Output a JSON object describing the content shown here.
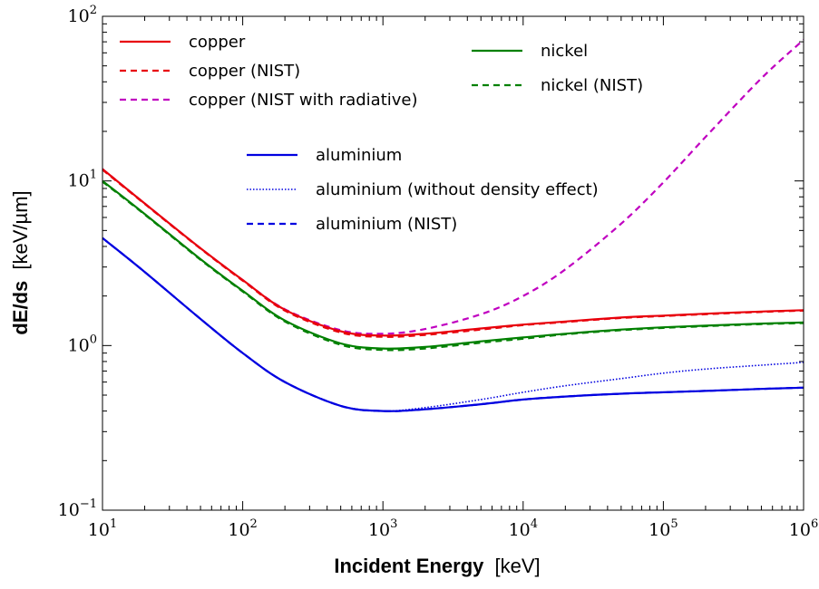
{
  "chart_data": {
    "type": "line",
    "xlabel": {
      "main": "Incident Energy",
      "unit": "[keV]"
    },
    "ylabel": {
      "main": "dE/ds",
      "unit": "[keV/µm]"
    },
    "xscale": "log",
    "yscale": "log",
    "xlim": [
      10,
      1000000
    ],
    "ylim": [
      0.1,
      100
    ],
    "grid": false,
    "x_ticks": [
      {
        "base": "10",
        "exp": "1"
      },
      {
        "base": "10",
        "exp": "2"
      },
      {
        "base": "10",
        "exp": "3"
      },
      {
        "base": "10",
        "exp": "4"
      },
      {
        "base": "10",
        "exp": "5"
      },
      {
        "base": "10",
        "exp": "6"
      }
    ],
    "y_ticks": [
      {
        "base": "10",
        "exp": "−1"
      },
      {
        "base": "10",
        "exp": "0"
      },
      {
        "base": "10",
        "exp": "1"
      },
      {
        "base": "10",
        "exp": "2"
      }
    ],
    "legend_groups": [
      "top-left",
      "top-center-right",
      "center"
    ],
    "series": [
      {
        "name": "copper",
        "color": "#e8000b",
        "style": "solid",
        "legend_group": 0,
        "x": [
          10,
          20,
          50,
          100,
          200,
          500,
          1000,
          2000,
          5000,
          10000,
          20000,
          50000,
          100000,
          200000,
          500000,
          1000000
        ],
        "y": [
          11.8,
          7.3,
          3.9,
          2.5,
          1.65,
          1.22,
          1.15,
          1.18,
          1.27,
          1.34,
          1.4,
          1.48,
          1.52,
          1.56,
          1.61,
          1.64
        ]
      },
      {
        "name": "copper (NIST)",
        "color": "#e8000b",
        "style": "dashed",
        "legend_group": 0,
        "x": [
          10,
          20,
          50,
          100,
          200,
          500,
          1000,
          2000,
          5000,
          10000,
          20000,
          50000,
          100000,
          200000,
          500000,
          1000000
        ],
        "y": [
          11.7,
          7.25,
          3.88,
          2.48,
          1.63,
          1.2,
          1.13,
          1.16,
          1.25,
          1.33,
          1.39,
          1.47,
          1.51,
          1.55,
          1.6,
          1.63
        ]
      },
      {
        "name": "copper (NIST with radiative)",
        "color": "#c000c0",
        "style": "dashed",
        "legend_group": 0,
        "x": [
          10,
          20,
          50,
          100,
          200,
          500,
          1000,
          2000,
          5000,
          10000,
          20000,
          50000,
          100000,
          200000,
          500000,
          1000000
        ],
        "y": [
          11.8,
          7.3,
          3.9,
          2.5,
          1.66,
          1.24,
          1.18,
          1.26,
          1.55,
          2.0,
          2.9,
          5.5,
          9.8,
          18.5,
          42.0,
          72.0
        ]
      },
      {
        "name": "nickel",
        "color": "#008000",
        "style": "solid",
        "legend_group": 1,
        "x": [
          10,
          20,
          50,
          100,
          200,
          500,
          1000,
          2000,
          5000,
          10000,
          20000,
          50000,
          100000,
          200000,
          500000,
          1000000
        ],
        "y": [
          10.0,
          6.3,
          3.35,
          2.15,
          1.42,
          1.03,
          0.96,
          0.98,
          1.06,
          1.12,
          1.18,
          1.25,
          1.29,
          1.32,
          1.36,
          1.38
        ]
      },
      {
        "name": "nickel (NIST)",
        "color": "#008000",
        "style": "dashed",
        "legend_group": 1,
        "x": [
          10,
          20,
          50,
          100,
          200,
          500,
          1000,
          2000,
          5000,
          10000,
          20000,
          50000,
          100000,
          200000,
          500000,
          1000000
        ],
        "y": [
          9.9,
          6.25,
          3.32,
          2.13,
          1.4,
          1.01,
          0.94,
          0.96,
          1.04,
          1.1,
          1.17,
          1.24,
          1.28,
          1.31,
          1.35,
          1.37
        ]
      },
      {
        "name": "aluminium",
        "color": "#0000e0",
        "style": "solid",
        "legend_group": 2,
        "x": [
          10,
          20,
          50,
          100,
          200,
          500,
          1000,
          2000,
          5000,
          10000,
          20000,
          50000,
          100000,
          200000,
          500000,
          1000000
        ],
        "y": [
          4.5,
          2.8,
          1.45,
          0.9,
          0.6,
          0.43,
          0.4,
          0.41,
          0.44,
          0.47,
          0.49,
          0.51,
          0.52,
          0.53,
          0.545,
          0.555
        ]
      },
      {
        "name": "aluminium (without density effect)",
        "color": "#0000e0",
        "style": "dotted",
        "legend_group": 2,
        "x": [
          10,
          20,
          50,
          100,
          200,
          500,
          1000,
          2000,
          5000,
          10000,
          20000,
          50000,
          100000,
          200000,
          500000,
          1000000
        ],
        "y": [
          4.5,
          2.8,
          1.45,
          0.9,
          0.6,
          0.43,
          0.4,
          0.42,
          0.47,
          0.52,
          0.57,
          0.63,
          0.68,
          0.72,
          0.76,
          0.79
        ]
      },
      {
        "name": "aluminium (NIST)",
        "color": "#0000e0",
        "style": "dashed",
        "legend_group": 2,
        "x": [
          10,
          20,
          50,
          100,
          200,
          500,
          1000,
          2000,
          5000,
          10000,
          20000,
          50000,
          100000,
          200000,
          500000,
          1000000
        ],
        "y": [
          4.5,
          2.8,
          1.45,
          0.9,
          0.6,
          0.43,
          0.4,
          0.41,
          0.44,
          0.47,
          0.49,
          0.51,
          0.52,
          0.53,
          0.545,
          0.555
        ]
      }
    ]
  }
}
